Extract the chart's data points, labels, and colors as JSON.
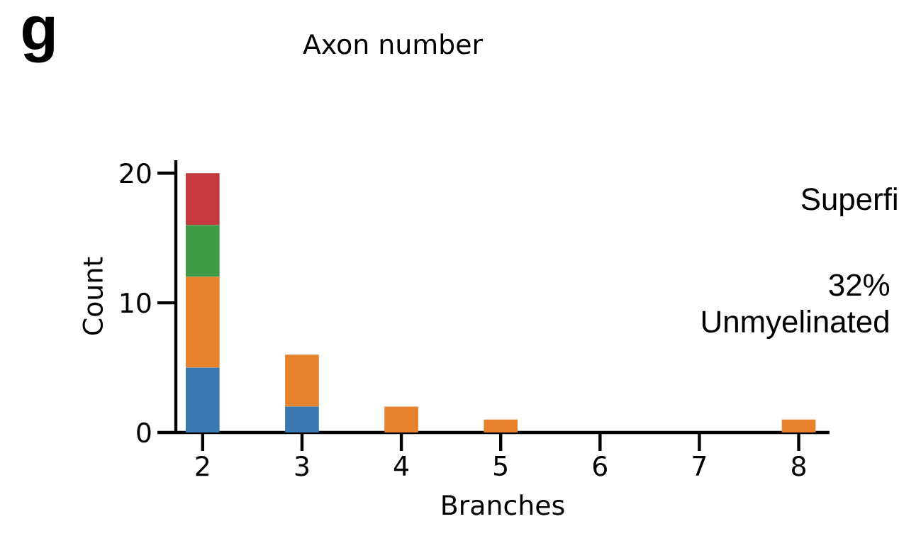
{
  "chart_data": {
    "type": "bar",
    "stacked": true,
    "xlabel": "Branches",
    "ylabel": "Count",
    "categories": [
      "2",
      "3",
      "4",
      "5",
      "6",
      "7",
      "8"
    ],
    "series": [
      {
        "color": "#3a77b0",
        "values": [
          5,
          2,
          0,
          0,
          0,
          0,
          0
        ]
      },
      {
        "color": "#e6822c",
        "values": [
          7,
          4,
          2,
          1,
          0,
          0,
          1
        ]
      },
      {
        "color": "#3d9a45",
        "values": [
          4,
          0,
          0,
          0,
          0,
          0,
          0
        ]
      },
      {
        "color": "#c5383c",
        "values": [
          4,
          0,
          0,
          0,
          0,
          0,
          0
        ]
      }
    ],
    "ylim": [
      0,
      21
    ],
    "yticks": [
      0,
      10,
      20
    ],
    "grid": false,
    "annotations": [
      "g",
      "Axon number",
      "Superfi",
      "32% Unmyelinated"
    ]
  }
}
